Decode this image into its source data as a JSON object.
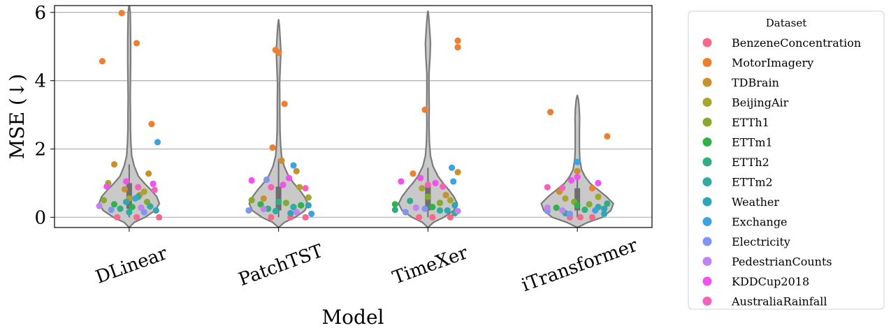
{
  "chart_data": {
    "type": "violin",
    "xlabel": "Model",
    "ylabel": "MSE (↓)",
    "ylim": [
      -0.3,
      6.2
    ],
    "yticks": [
      0,
      2,
      4,
      6
    ],
    "grid": "horizontal",
    "legend_placement": "outside-right",
    "legend_title": "Dataset",
    "categories": [
      "DLinear",
      "PatchTST",
      "TimeXer",
      "iTransformer"
    ],
    "datasets": [
      {
        "name": "BenzeneConcentration",
        "color": "#f7688a"
      },
      {
        "name": "MotorImagery",
        "color": "#ee7f2f"
      },
      {
        "name": "TDBrain",
        "color": "#c8902f"
      },
      {
        "name": "BeijingAir",
        "color": "#a8a52f"
      },
      {
        "name": "ETTh1",
        "color": "#86a92f"
      },
      {
        "name": "ETTm1",
        "color": "#2fb24a"
      },
      {
        "name": "ETTh2",
        "color": "#30ae82"
      },
      {
        "name": "ETTm2",
        "color": "#2fab9f"
      },
      {
        "name": "Weather",
        "color": "#2fa6b5"
      },
      {
        "name": "Exchange",
        "color": "#3da3e0"
      },
      {
        "name": "Electricity",
        "color": "#7f96f0"
      },
      {
        "name": "PedestrianCounts",
        "color": "#bf84f1"
      },
      {
        "name": "KDDCup2018",
        "color": "#f052f0"
      },
      {
        "name": "AustraliaRainfall",
        "color": "#f661b9"
      }
    ],
    "points": {
      "DLinear": [
        {
          "d": "BenzeneConcentration",
          "y": 0.0,
          "j": -0.08
        },
        {
          "d": "BenzeneConcentration",
          "y": 0.0,
          "j": 0.05
        },
        {
          "d": "BenzeneConcentration",
          "y": 0.0,
          "j": 0.2
        },
        {
          "d": "MotorImagery",
          "y": 5.98,
          "j": -0.05
        },
        {
          "d": "MotorImagery",
          "y": 5.1,
          "j": 0.05
        },
        {
          "d": "MotorImagery",
          "y": 4.57,
          "j": -0.18
        },
        {
          "d": "MotorImagery",
          "y": 2.73,
          "j": 0.15
        },
        {
          "d": "TDBrain",
          "y": 1.55,
          "j": -0.1
        },
        {
          "d": "TDBrain",
          "y": 1.28,
          "j": 0.13
        },
        {
          "d": "TDBrain",
          "y": 0.82,
          "j": -0.03
        },
        {
          "d": "TDBrain",
          "y": 0.65,
          "j": 0.07
        },
        {
          "d": "BeijingAir",
          "y": 1.0,
          "j": -0.14
        },
        {
          "d": "BeijingAir",
          "y": 0.75,
          "j": 0.1
        },
        {
          "d": "BeijingAir",
          "y": 0.55,
          "j": 0.0
        },
        {
          "d": "ETTh1",
          "y": 0.5,
          "j": -0.17
        },
        {
          "d": "ETTh1",
          "y": 0.45,
          "j": 0.12
        },
        {
          "d": "ETTm1",
          "y": 0.38,
          "j": -0.1
        },
        {
          "d": "ETTm1",
          "y": 0.3,
          "j": 0.02
        },
        {
          "d": "ETTh2",
          "y": 0.6,
          "j": 0.06
        },
        {
          "d": "ETTh2",
          "y": 0.25,
          "j": -0.06
        },
        {
          "d": "ETTm2",
          "y": 0.32,
          "j": 0.14
        },
        {
          "d": "ETTm2",
          "y": 0.15,
          "j": 0.0
        },
        {
          "d": "Weather",
          "y": 0.45,
          "j": -0.02
        },
        {
          "d": "Weather",
          "y": 0.2,
          "j": 0.18
        },
        {
          "d": "Exchange",
          "y": 2.2,
          "j": 0.19
        },
        {
          "d": "Exchange",
          "y": 0.55,
          "j": 0.04
        },
        {
          "d": "Electricity",
          "y": 0.22,
          "j": -0.12
        },
        {
          "d": "Electricity",
          "y": 0.15,
          "j": 0.1
        },
        {
          "d": "PedestrianCounts",
          "y": 0.33,
          "j": -0.2
        },
        {
          "d": "PedestrianCounts",
          "y": 0.28,
          "j": 0.08
        },
        {
          "d": "KDDCup2018",
          "y": 1.05,
          "j": -0.02
        },
        {
          "d": "KDDCup2018",
          "y": 0.98,
          "j": 0.16
        },
        {
          "d": "KDDCup2018",
          "y": 0.9,
          "j": -0.15
        },
        {
          "d": "AustraliaRainfall",
          "y": 0.88,
          "j": 0.06
        },
        {
          "d": "AustraliaRainfall",
          "y": 0.8,
          "j": 0.17
        }
      ],
      "PatchTST": [
        {
          "d": "BenzeneConcentration",
          "y": 0.0,
          "j": -0.05
        },
        {
          "d": "BenzeneConcentration",
          "y": 0.0,
          "j": 0.08
        },
        {
          "d": "BenzeneConcentration",
          "y": 0.0,
          "j": 0.18
        },
        {
          "d": "MotorImagery",
          "y": 4.9,
          "j": -0.02
        },
        {
          "d": "MotorImagery",
          "y": 4.82,
          "j": 0.0
        },
        {
          "d": "MotorImagery",
          "y": 3.32,
          "j": 0.04
        },
        {
          "d": "MotorImagery",
          "y": 2.04,
          "j": -0.04
        },
        {
          "d": "TDBrain",
          "y": 1.66,
          "j": 0.02
        },
        {
          "d": "TDBrain",
          "y": 1.35,
          "j": 0.12
        },
        {
          "d": "TDBrain",
          "y": 0.55,
          "j": -0.1
        },
        {
          "d": "BeijingAir",
          "y": 0.88,
          "j": 0.14
        },
        {
          "d": "BeijingAir",
          "y": 0.58,
          "j": 0.2
        },
        {
          "d": "ETTh1",
          "y": 0.5,
          "j": -0.18
        },
        {
          "d": "ETTh1",
          "y": 0.42,
          "j": 0.05
        },
        {
          "d": "ETTm1",
          "y": 0.38,
          "j": -0.12
        },
        {
          "d": "ETTm1",
          "y": 0.35,
          "j": 0.15
        },
        {
          "d": "ETTh2",
          "y": 0.45,
          "j": 0.0
        },
        {
          "d": "ETTh2",
          "y": 0.25,
          "j": -0.07
        },
        {
          "d": "ETTm2",
          "y": 0.3,
          "j": 0.1
        },
        {
          "d": "ETTm2",
          "y": 0.18,
          "j": -0.02
        },
        {
          "d": "Weather",
          "y": 0.35,
          "j": 0.2
        },
        {
          "d": "Weather",
          "y": 0.12,
          "j": 0.08
        },
        {
          "d": "Exchange",
          "y": 1.52,
          "j": 0.1
        },
        {
          "d": "Exchange",
          "y": 0.1,
          "j": 0.22
        },
        {
          "d": "Electricity",
          "y": 1.1,
          "j": -0.08
        },
        {
          "d": "Electricity",
          "y": 0.2,
          "j": -0.2
        },
        {
          "d": "PedestrianCounts",
          "y": 0.24,
          "j": -0.1
        },
        {
          "d": "PedestrianCounts",
          "y": 0.15,
          "j": 0.12
        },
        {
          "d": "KDDCup2018",
          "y": 1.15,
          "j": 0.07
        },
        {
          "d": "KDDCup2018",
          "y": 1.08,
          "j": -0.18
        },
        {
          "d": "KDDCup2018",
          "y": 0.95,
          "j": 0.03
        },
        {
          "d": "AustraliaRainfall",
          "y": 0.88,
          "j": -0.05
        },
        {
          "d": "AustraliaRainfall",
          "y": 0.85,
          "j": 0.18
        }
      ],
      "TimeXer": [
        {
          "d": "BenzeneConcentration",
          "y": 0.0,
          "j": -0.06
        },
        {
          "d": "BenzeneConcentration",
          "y": 0.0,
          "j": 0.03
        },
        {
          "d": "BenzeneConcentration",
          "y": 0.0,
          "j": 0.15
        },
        {
          "d": "MotorImagery",
          "y": 5.17,
          "j": 0.2
        },
        {
          "d": "MotorImagery",
          "y": 4.98,
          "j": 0.2
        },
        {
          "d": "MotorImagery",
          "y": 3.15,
          "j": -0.02
        },
        {
          "d": "MotorImagery",
          "y": 1.28,
          "j": -0.1
        },
        {
          "d": "TDBrain",
          "y": 1.32,
          "j": 0.2
        },
        {
          "d": "TDBrain",
          "y": 0.65,
          "j": 0.12
        },
        {
          "d": "BeijingAir",
          "y": 0.85,
          "j": -0.04
        },
        {
          "d": "BeijingAir",
          "y": 0.5,
          "j": 0.15
        },
        {
          "d": "ETTh1",
          "y": 0.6,
          "j": 0.0
        },
        {
          "d": "ETTh1",
          "y": 0.42,
          "j": 0.08
        },
        {
          "d": "ETTm1",
          "y": 0.38,
          "j": -0.22
        },
        {
          "d": "ETTm1",
          "y": 0.3,
          "j": 0.03
        },
        {
          "d": "ETTh2",
          "y": 0.48,
          "j": -0.12
        },
        {
          "d": "ETTh2",
          "y": 0.22,
          "j": -0.22
        },
        {
          "d": "ETTm2",
          "y": 0.2,
          "j": 0.08
        },
        {
          "d": "ETTm2",
          "y": 0.12,
          "j": 0.18
        },
        {
          "d": "Weather",
          "y": 0.35,
          "j": 0.18
        },
        {
          "d": "Weather",
          "y": 0.2,
          "j": 0.13
        },
        {
          "d": "Exchange",
          "y": 1.45,
          "j": 0.16
        },
        {
          "d": "Exchange",
          "y": 1.05,
          "j": 0.17
        },
        {
          "d": "Electricity",
          "y": 0.25,
          "j": -0.02
        },
        {
          "d": "Electricity",
          "y": 0.15,
          "j": -0.15
        },
        {
          "d": "PedestrianCounts",
          "y": 0.28,
          "j": -0.08
        },
        {
          "d": "PedestrianCounts",
          "y": 0.18,
          "j": 0.2
        },
        {
          "d": "KDDCup2018",
          "y": 1.15,
          "j": -0.05
        },
        {
          "d": "KDDCup2018",
          "y": 1.05,
          "j": -0.18
        },
        {
          "d": "KDDCup2018",
          "y": 1.0,
          "j": 0.05
        },
        {
          "d": "AustraliaRainfall",
          "y": 0.95,
          "j": 0.0
        },
        {
          "d": "AustraliaRainfall",
          "y": 0.9,
          "j": 0.1
        }
      ],
      "iTransformer": [
        {
          "d": "BenzeneConcentration",
          "y": 0.0,
          "j": -0.05
        },
        {
          "d": "BenzeneConcentration",
          "y": 0.0,
          "j": 0.02
        },
        {
          "d": "BenzeneConcentration",
          "y": 0.0,
          "j": 0.1
        },
        {
          "d": "MotorImagery",
          "y": 3.08,
          "j": -0.18
        },
        {
          "d": "MotorImagery",
          "y": 2.37,
          "j": 0.2
        },
        {
          "d": "MotorImagery",
          "y": 0.85,
          "j": 0.1
        },
        {
          "d": "TDBrain",
          "y": 1.35,
          "j": 0.0
        },
        {
          "d": "TDBrain",
          "y": 0.75,
          "j": -0.12
        },
        {
          "d": "BeijingAir",
          "y": 0.6,
          "j": 0.14
        },
        {
          "d": "BeijingAir",
          "y": 0.55,
          "j": -0.08
        },
        {
          "d": "ETTh1",
          "y": 0.45,
          "j": -0.02
        },
        {
          "d": "ETTh1",
          "y": 0.38,
          "j": 0.08
        },
        {
          "d": "ETTm1",
          "y": 0.35,
          "j": 0.0
        },
        {
          "d": "ETTm1",
          "y": 0.28,
          "j": -0.14
        },
        {
          "d": "ETTh2",
          "y": 0.4,
          "j": 0.2
        },
        {
          "d": "ETTh2",
          "y": 0.22,
          "j": 0.05
        },
        {
          "d": "ETTm2",
          "y": 0.3,
          "j": 0.14
        },
        {
          "d": "ETTm2",
          "y": 0.12,
          "j": -0.08
        },
        {
          "d": "Weather",
          "y": 0.25,
          "j": 0.18
        },
        {
          "d": "Weather",
          "y": 0.1,
          "j": 0.18
        },
        {
          "d": "Exchange",
          "y": 1.62,
          "j": 0.0
        },
        {
          "d": "Exchange",
          "y": 0.2,
          "j": 0.12
        },
        {
          "d": "Electricity",
          "y": 0.18,
          "j": -0.2
        },
        {
          "d": "Electricity",
          "y": 0.1,
          "j": -0.05
        },
        {
          "d": "PedestrianCounts",
          "y": 0.28,
          "j": -0.2
        },
        {
          "d": "PedestrianCounts",
          "y": 0.2,
          "j": -0.1
        },
        {
          "d": "KDDCup2018",
          "y": 1.18,
          "j": 0.0
        },
        {
          "d": "KDDCup2018",
          "y": 1.08,
          "j": -0.04
        },
        {
          "d": "KDDCup2018",
          "y": 1.0,
          "j": 0.14
        },
        {
          "d": "AustraliaRainfall",
          "y": 0.88,
          "j": -0.2
        },
        {
          "d": "AustraliaRainfall",
          "y": 0.86,
          "j": -0.1
        }
      ]
    },
    "violins": {
      "DLinear": {
        "ymin": -0.3,
        "ymax": 6.25,
        "box": [
          0.25,
          1.0
        ],
        "whisker": [
          0.0,
          1.55
        ],
        "profile": [
          [
            -0.3,
            0.0
          ],
          [
            -0.15,
            0.12
          ],
          [
            0.0,
            0.38
          ],
          [
            0.2,
            0.62
          ],
          [
            0.4,
            0.72
          ],
          [
            0.6,
            0.66
          ],
          [
            0.8,
            0.52
          ],
          [
            1.0,
            0.36
          ],
          [
            1.2,
            0.22
          ],
          [
            1.5,
            0.12
          ],
          [
            1.8,
            0.06
          ],
          [
            2.2,
            0.04
          ],
          [
            2.6,
            0.03
          ],
          [
            3.0,
            0.03
          ],
          [
            3.5,
            0.025
          ],
          [
            4.0,
            0.03
          ],
          [
            4.6,
            0.035
          ],
          [
            5.1,
            0.035
          ],
          [
            5.6,
            0.03
          ],
          [
            6.0,
            0.025
          ],
          [
            6.25,
            0.0
          ]
        ]
      },
      "PatchTST": {
        "ymin": -0.3,
        "ymax": 5.8,
        "box": [
          0.2,
          0.9
        ],
        "whisker": [
          0.0,
          1.7
        ],
        "profile": [
          [
            -0.3,
            0.0
          ],
          [
            -0.15,
            0.14
          ],
          [
            0.0,
            0.4
          ],
          [
            0.2,
            0.63
          ],
          [
            0.4,
            0.7
          ],
          [
            0.6,
            0.62
          ],
          [
            0.8,
            0.5
          ],
          [
            1.0,
            0.36
          ],
          [
            1.2,
            0.24
          ],
          [
            1.5,
            0.13
          ],
          [
            1.8,
            0.07
          ],
          [
            2.1,
            0.05
          ],
          [
            2.5,
            0.035
          ],
          [
            3.0,
            0.03
          ],
          [
            3.4,
            0.03
          ],
          [
            3.9,
            0.025
          ],
          [
            4.4,
            0.04
          ],
          [
            4.85,
            0.055
          ],
          [
            5.2,
            0.04
          ],
          [
            5.6,
            0.02
          ],
          [
            5.8,
            0.0
          ]
        ]
      },
      "TimeXer": {
        "ymin": -0.3,
        "ymax": 6.05,
        "box": [
          0.2,
          0.95
        ],
        "whisker": [
          0.0,
          1.45
        ],
        "profile": [
          [
            -0.3,
            0.0
          ],
          [
            -0.15,
            0.13
          ],
          [
            0.0,
            0.38
          ],
          [
            0.2,
            0.62
          ],
          [
            0.4,
            0.7
          ],
          [
            0.6,
            0.62
          ],
          [
            0.8,
            0.5
          ],
          [
            1.0,
            0.36
          ],
          [
            1.2,
            0.24
          ],
          [
            1.5,
            0.12
          ],
          [
            1.8,
            0.06
          ],
          [
            2.2,
            0.035
          ],
          [
            2.7,
            0.025
          ],
          [
            3.2,
            0.03
          ],
          [
            3.7,
            0.025
          ],
          [
            4.2,
            0.025
          ],
          [
            4.7,
            0.05
          ],
          [
            5.1,
            0.06
          ],
          [
            5.5,
            0.04
          ],
          [
            5.85,
            0.02
          ],
          [
            6.05,
            0.0
          ]
        ]
      },
      "iTransformer": {
        "ymin": -0.3,
        "ymax": 3.58,
        "box": [
          0.2,
          0.85
        ],
        "whisker": [
          0.0,
          1.4
        ],
        "profile": [
          [
            -0.3,
            0.0
          ],
          [
            -0.15,
            0.25
          ],
          [
            0.0,
            0.6
          ],
          [
            0.2,
            0.8
          ],
          [
            0.4,
            0.86
          ],
          [
            0.6,
            0.7
          ],
          [
            0.8,
            0.5
          ],
          [
            1.0,
            0.3
          ],
          [
            1.2,
            0.18
          ],
          [
            1.4,
            0.1
          ],
          [
            1.7,
            0.06
          ],
          [
            2.0,
            0.05
          ],
          [
            2.3,
            0.05
          ],
          [
            2.6,
            0.05
          ],
          [
            2.9,
            0.055
          ],
          [
            3.2,
            0.045
          ],
          [
            3.45,
            0.025
          ],
          [
            3.58,
            0.0
          ]
        ]
      }
    }
  }
}
